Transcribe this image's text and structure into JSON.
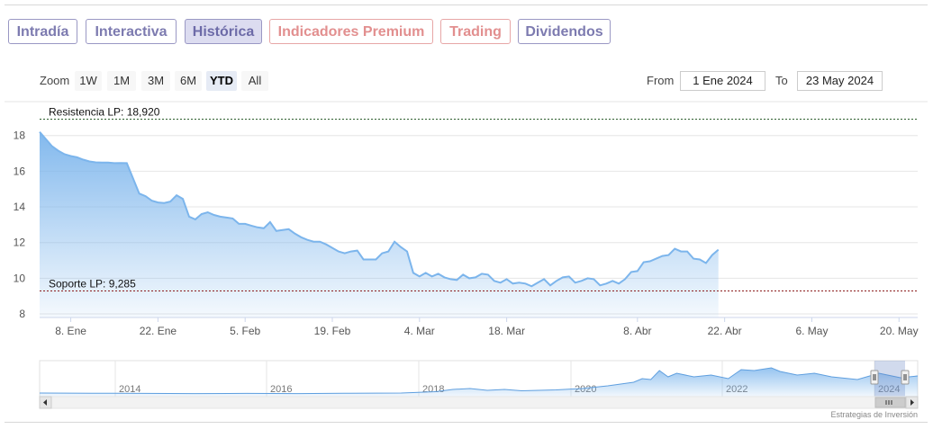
{
  "tabs": [
    {
      "label": "Intradía",
      "variant": "normal"
    },
    {
      "label": "Interactiva",
      "variant": "normal"
    },
    {
      "label": "Histórica",
      "variant": "active"
    },
    {
      "label": "Indicadores Premium",
      "variant": "premium"
    },
    {
      "label": "Trading",
      "variant": "premium"
    },
    {
      "label": "Dividendos",
      "variant": "normal"
    }
  ],
  "range_selector": {
    "zoom_label": "Zoom",
    "buttons": [
      "1W",
      "1M",
      "3M",
      "6M",
      "YTD",
      "All"
    ],
    "selected": "YTD",
    "from_label": "From",
    "from_value": "1 Ene 2024",
    "to_label": "To",
    "to_value": "23 May 2024"
  },
  "colors": {
    "tab_border": "#9a98c4",
    "tab_text": "#7d7bb0",
    "premium_text": "#e28f8f",
    "series_line": "#7cb5ec",
    "resistance_line": "#2e5e2e",
    "support_line": "#8b1c1c"
  },
  "chart_data": {
    "type": "area",
    "title": "",
    "xlabel": "",
    "ylabel": "",
    "ylim": [
      7.8,
      19.8
    ],
    "y_ticks": [
      8,
      10,
      12,
      14,
      16,
      18
    ],
    "x_ticks": [
      "8. Ene",
      "22. Ene",
      "5. Feb",
      "19. Feb",
      "4. Mar",
      "18. Mar",
      "8. Abr",
      "22. Abr",
      "6. May",
      "20. May"
    ],
    "x_tick_days": [
      7,
      21,
      35,
      49,
      63,
      77,
      98,
      112,
      126,
      140
    ],
    "x_range_days": [
      2,
      143
    ],
    "grid": true,
    "series": [
      {
        "name": "",
        "points": [
          [
            2,
            18.2
          ],
          [
            3,
            17.8
          ],
          [
            4,
            17.4
          ],
          [
            5,
            17.15
          ],
          [
            6,
            16.95
          ],
          [
            7,
            16.85
          ],
          [
            8,
            16.78
          ],
          [
            9,
            16.65
          ],
          [
            10,
            16.55
          ],
          [
            11,
            16.5
          ],
          [
            12,
            16.48
          ],
          [
            13,
            16.48
          ],
          [
            14,
            16.45
          ],
          [
            15,
            16.46
          ],
          [
            16,
            16.45
          ],
          [
            17,
            15.6
          ],
          [
            18,
            14.75
          ],
          [
            19,
            14.6
          ],
          [
            20,
            14.35
          ],
          [
            21,
            14.25
          ],
          [
            22,
            14.22
          ],
          [
            23,
            14.3
          ],
          [
            24,
            14.65
          ],
          [
            25,
            14.45
          ],
          [
            26,
            13.45
          ],
          [
            27,
            13.3
          ],
          [
            28,
            13.6
          ],
          [
            29,
            13.7
          ],
          [
            30,
            13.55
          ],
          [
            31,
            13.45
          ],
          [
            32,
            13.4
          ],
          [
            33,
            13.35
          ],
          [
            34,
            13.05
          ],
          [
            35,
            13.05
          ],
          [
            36,
            12.95
          ],
          [
            37,
            12.85
          ],
          [
            38,
            12.8
          ],
          [
            39,
            13.15
          ],
          [
            40,
            12.65
          ],
          [
            41,
            12.7
          ],
          [
            42,
            12.75
          ],
          [
            43,
            12.5
          ],
          [
            44,
            12.3
          ],
          [
            45,
            12.15
          ],
          [
            46,
            12.05
          ],
          [
            47,
            12.05
          ],
          [
            48,
            11.9
          ],
          [
            49,
            11.7
          ],
          [
            50,
            11.5
          ],
          [
            51,
            11.4
          ],
          [
            52,
            11.5
          ],
          [
            53,
            11.55
          ],
          [
            54,
            11.05
          ],
          [
            55,
            11.05
          ],
          [
            56,
            11.05
          ],
          [
            57,
            11.4
          ],
          [
            58,
            11.5
          ],
          [
            59,
            12.05
          ],
          [
            60,
            11.75
          ],
          [
            61,
            11.5
          ],
          [
            62,
            10.3
          ],
          [
            63,
            10.1
          ],
          [
            64,
            10.3
          ],
          [
            65,
            10.1
          ],
          [
            66,
            10.25
          ],
          [
            67,
            10.05
          ],
          [
            68,
            9.95
          ],
          [
            69,
            9.9
          ],
          [
            70,
            10.2
          ],
          [
            71,
            10.0
          ],
          [
            72,
            10.05
          ],
          [
            73,
            10.25
          ],
          [
            74,
            10.2
          ],
          [
            75,
            9.85
          ],
          [
            76,
            9.75
          ],
          [
            77,
            9.95
          ],
          [
            78,
            9.7
          ],
          [
            79,
            9.75
          ],
          [
            80,
            9.7
          ],
          [
            81,
            9.55
          ],
          [
            82,
            9.75
          ],
          [
            83,
            9.95
          ],
          [
            84,
            9.6
          ],
          [
            85,
            9.85
          ],
          [
            86,
            10.05
          ],
          [
            87,
            10.1
          ],
          [
            88,
            9.75
          ],
          [
            89,
            9.85
          ],
          [
            90,
            10.0
          ],
          [
            91,
            9.95
          ],
          [
            92,
            9.6
          ],
          [
            93,
            9.7
          ],
          [
            94,
            9.85
          ],
          [
            95,
            9.7
          ],
          [
            96,
            9.95
          ],
          [
            97,
            10.35
          ],
          [
            98,
            10.4
          ],
          [
            99,
            10.9
          ],
          [
            100,
            10.95
          ],
          [
            101,
            11.1
          ],
          [
            102,
            11.25
          ],
          [
            103,
            11.3
          ],
          [
            104,
            11.65
          ],
          [
            105,
            11.5
          ],
          [
            106,
            11.5
          ],
          [
            107,
            11.1
          ],
          [
            108,
            11.05
          ],
          [
            109,
            10.85
          ],
          [
            110,
            11.3
          ],
          [
            111,
            11.6
          ]
        ]
      }
    ],
    "plot_lines": [
      {
        "label": "Resistencia LP: 18,920",
        "value": 18.92
      },
      {
        "label": "Soporte LP: 9,285",
        "value": 9.285
      }
    ],
    "navigator": {
      "year_labels": [
        "2014",
        "2016",
        "2018",
        "2020",
        "2022",
        "2024"
      ]
    },
    "credits": "Estrategias de Inversión"
  }
}
